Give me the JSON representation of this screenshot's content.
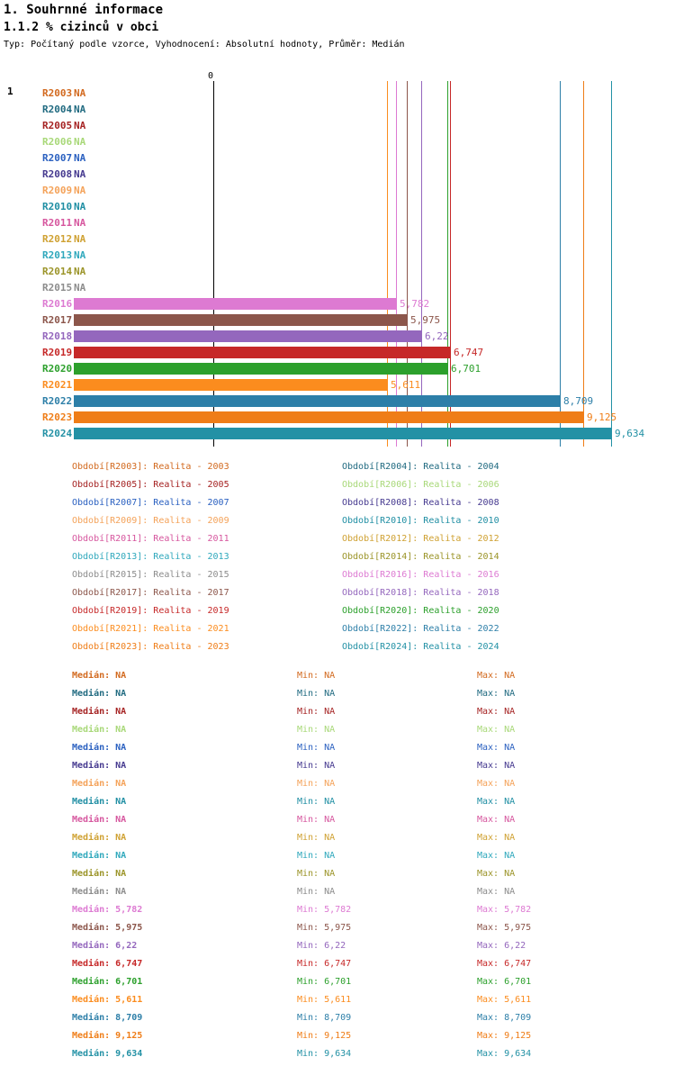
{
  "header": {
    "title": "1. Souhrnné informace",
    "subtitle": "1.1.2 % cizinců v obci",
    "meta": "Typ: Počítaný podle vzorce, Vyhodnocení: Absolutní hodnoty, Průměr: Medián",
    "row_marker": "1"
  },
  "chart_data": {
    "type": "bar",
    "orientation": "horizontal",
    "title": "1.1.2 % cizinců v obci",
    "xlabel": "",
    "ylabel": "",
    "xlim": [
      0,
      9.7
    ],
    "axis_zero_label": "0",
    "na_text": "NA",
    "legend_position": "bottom",
    "categories": [
      "R2003",
      "R2004",
      "R2005",
      "R2006",
      "R2007",
      "R2008",
      "R2009",
      "R2010",
      "R2011",
      "R2012",
      "R2013",
      "R2014",
      "R2015",
      "R2016",
      "R2017",
      "R2018",
      "R2019",
      "R2020",
      "R2021",
      "R2022",
      "R2023",
      "R2024"
    ],
    "values": [
      null,
      null,
      null,
      null,
      null,
      null,
      null,
      null,
      null,
      null,
      null,
      null,
      null,
      5.782,
      5.975,
      6.22,
      6.747,
      6.701,
      5.611,
      8.709,
      9.125,
      9.634
    ],
    "value_labels": [
      "NA",
      "NA",
      "NA",
      "NA",
      "NA",
      "NA",
      "NA",
      "NA",
      "NA",
      "NA",
      "NA",
      "NA",
      "NA",
      "5,782",
      "5,975",
      "6,22",
      "6,747",
      "6,701",
      "5,611",
      "8,709",
      "9,125",
      "9,634"
    ],
    "colors": [
      "#d2691e",
      "#206a80",
      "#a52222",
      "#a8d878",
      "#2a60c0",
      "#45398f",
      "#f4a259",
      "#1f8ea3",
      "#d6569e",
      "#cfa132",
      "#2fa8bc",
      "#9b9428",
      "#8c8c8c",
      "#dd7ad2",
      "#8c564b",
      "#9467bd",
      "#c62828",
      "#2ca02c",
      "#fb8c1e",
      "#2d7fa8",
      "#ef7d17",
      "#2391a5"
    ]
  },
  "legend": {
    "items": [
      "Období[R2003]: Realita - 2003",
      "Období[R2004]: Realita - 2004",
      "Období[R2005]: Realita - 2005",
      "Období[R2006]: Realita - 2006",
      "Období[R2007]: Realita - 2007",
      "Období[R2008]: Realita - 2008",
      "Období[R2009]: Realita - 2009",
      "Období[R2010]: Realita - 2010",
      "Období[R2011]: Realita - 2011",
      "Období[R2012]: Realita - 2012",
      "Období[R2013]: Realita - 2013",
      "Období[R2014]: Realita - 2014",
      "Období[R2015]: Realita - 2015",
      "Období[R2016]: Realita - 2016",
      "Období[R2017]: Realita - 2017",
      "Období[R2018]: Realita - 2018",
      "Období[R2019]: Realita - 2019",
      "Období[R2020]: Realita - 2020",
      "Období[R2021]: Realita - 2021",
      "Období[R2022]: Realita - 2022",
      "Období[R2023]: Realita - 2023",
      "Období[R2024]: Realita - 2024"
    ]
  },
  "stats": {
    "median_label": "Medián",
    "min_label": "Min",
    "max_label": "Max",
    "rows": [
      {
        "median": "NA",
        "min": "NA",
        "max": "NA"
      },
      {
        "median": "NA",
        "min": "NA",
        "max": "NA"
      },
      {
        "median": "NA",
        "min": "NA",
        "max": "NA"
      },
      {
        "median": "NA",
        "min": "NA",
        "max": "NA"
      },
      {
        "median": "NA",
        "min": "NA",
        "max": "NA"
      },
      {
        "median": "NA",
        "min": "NA",
        "max": "NA"
      },
      {
        "median": "NA",
        "min": "NA",
        "max": "NA"
      },
      {
        "median": "NA",
        "min": "NA",
        "max": "NA"
      },
      {
        "median": "NA",
        "min": "NA",
        "max": "NA"
      },
      {
        "median": "NA",
        "min": "NA",
        "max": "NA"
      },
      {
        "median": "NA",
        "min": "NA",
        "max": "NA"
      },
      {
        "median": "NA",
        "min": "NA",
        "max": "NA"
      },
      {
        "median": "NA",
        "min": "NA",
        "max": "NA"
      },
      {
        "median": "5,782",
        "min": "5,782",
        "max": "5,782"
      },
      {
        "median": "5,975",
        "min": "5,975",
        "max": "5,975"
      },
      {
        "median": "6,22",
        "min": "6,22",
        "max": "6,22"
      },
      {
        "median": "6,747",
        "min": "6,747",
        "max": "6,747"
      },
      {
        "median": "6,701",
        "min": "6,701",
        "max": "6,701"
      },
      {
        "median": "5,611",
        "min": "5,611",
        "max": "5,611"
      },
      {
        "median": "8,709",
        "min": "8,709",
        "max": "8,709"
      },
      {
        "median": "9,125",
        "min": "9,125",
        "max": "9,125"
      },
      {
        "median": "9,634",
        "min": "9,634",
        "max": "9,634"
      }
    ]
  }
}
